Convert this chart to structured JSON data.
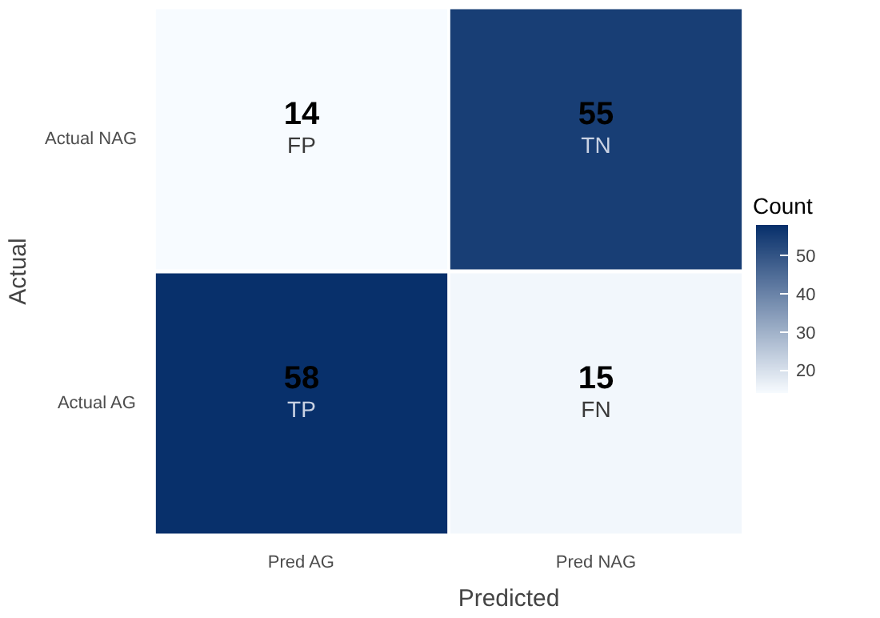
{
  "chart_data": {
    "type": "heatmap",
    "xlabel": "Predicted",
    "ylabel": "Actual",
    "clabel": "Count",
    "categories": [
      "Pred AG",
      "Pred NAG"
    ],
    "y_categories": [
      "Actual NAG",
      "Actual AG"
    ],
    "cells": [
      [
        14,
        55
      ],
      [
        58,
        15
      ]
    ],
    "cell_labels": [
      [
        "14\nFP",
        "55\nTN"
      ],
      [
        "58\nTP",
        "15\nFN"
      ]
    ],
    "clim": [
      14,
      58
    ],
    "cticks": [
      20,
      30,
      40,
      50
    ]
  }
}
